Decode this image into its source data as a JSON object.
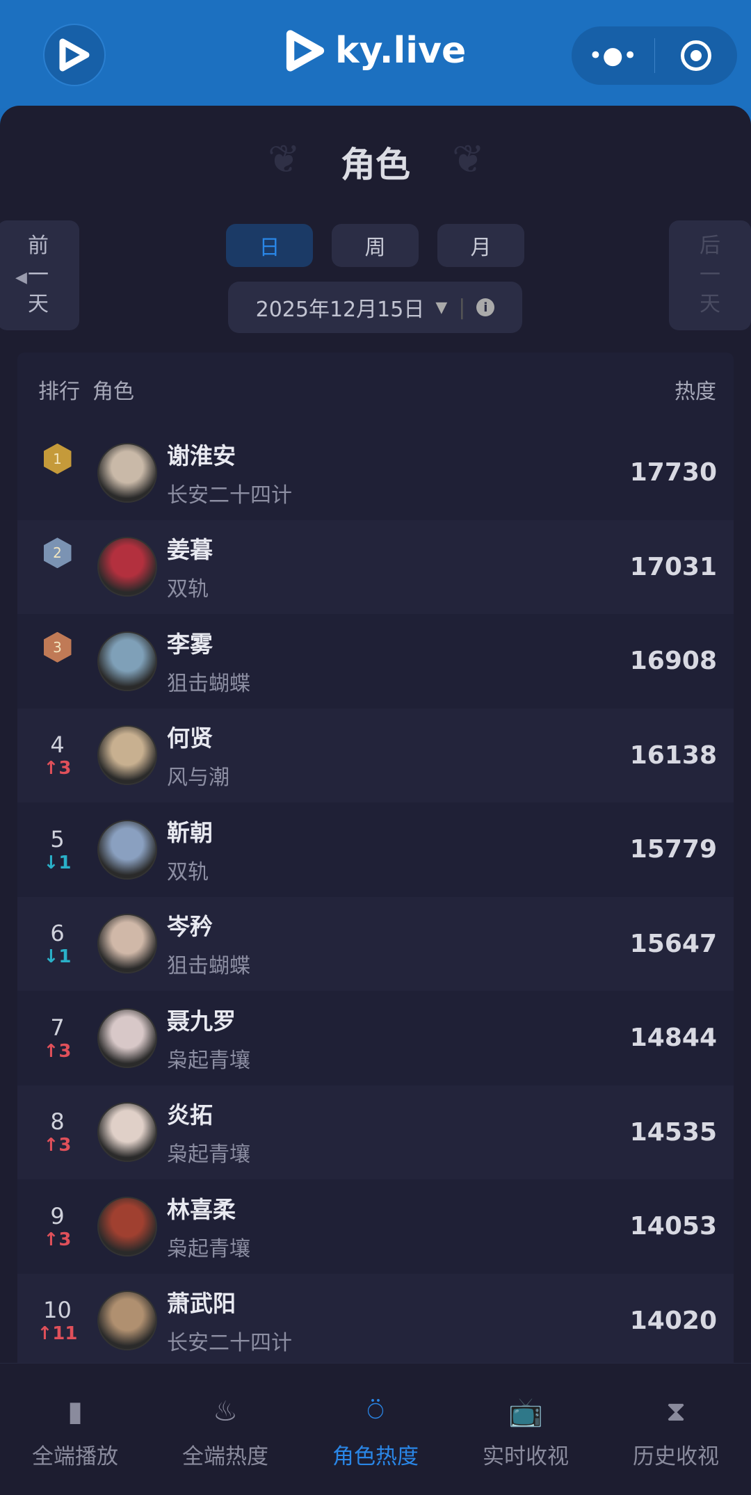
{
  "app": {
    "brand": "ky.live",
    "accent": "#2a86e6"
  },
  "header": {
    "title": "角色",
    "prev_day": [
      "前",
      "一",
      "天"
    ],
    "next_day": [
      "后",
      "一",
      "天"
    ],
    "tabs": [
      {
        "label": "日",
        "active": true
      },
      {
        "label": "周"
      },
      {
        "label": "月"
      }
    ],
    "date": "2025年12月15日"
  },
  "table": {
    "col_rank": "排行",
    "col_role": "角色",
    "col_heat": "热度",
    "rows": [
      {
        "rank": "1",
        "name": "谢淮安",
        "show": "长安二十四计",
        "heat": "17730",
        "medal": "#c59a3a"
      },
      {
        "rank": "2",
        "name": "姜暮",
        "show": "双轨",
        "heat": "17031",
        "medal": "#7b93b3"
      },
      {
        "rank": "3",
        "name": "李雾",
        "show": "狙击蝴蝶",
        "heat": "16908",
        "medal": "#c07a56"
      },
      {
        "rank": "4",
        "name": "何贤",
        "show": "风与潮",
        "heat": "16138",
        "change": "↑3",
        "dir": "up"
      },
      {
        "rank": "5",
        "name": "靳朝",
        "show": "双轨",
        "heat": "15779",
        "change": "↓1",
        "dir": "down"
      },
      {
        "rank": "6",
        "name": "岑矜",
        "show": "狙击蝴蝶",
        "heat": "15647",
        "change": "↓1",
        "dir": "down"
      },
      {
        "rank": "7",
        "name": "聂九罗",
        "show": "枭起青壤",
        "heat": "14844",
        "change": "↑3",
        "dir": "up"
      },
      {
        "rank": "8",
        "name": "炎拓",
        "show": "枭起青壤",
        "heat": "14535",
        "change": "↑3",
        "dir": "up"
      },
      {
        "rank": "9",
        "name": "林喜柔",
        "show": "枭起青壤",
        "heat": "14053",
        "change": "↑3",
        "dir": "up"
      },
      {
        "rank": "10",
        "name": "萧武阳",
        "show": "长安二十四计",
        "heat": "14020",
        "change": "↑11",
        "dir": "up"
      }
    ]
  },
  "nav": [
    {
      "label": "全端播放",
      "icon": "phone-icon"
    },
    {
      "label": "全端热度",
      "icon": "flame-icon"
    },
    {
      "label": "角色热度",
      "icon": "user-icon",
      "active": true
    },
    {
      "label": "实时收视",
      "icon": "tv-icon"
    },
    {
      "label": "历史收视",
      "icon": "hourglass-tv-icon"
    }
  ],
  "colors": {
    "up": "#e0505a",
    "down": "#2ab0c8"
  }
}
